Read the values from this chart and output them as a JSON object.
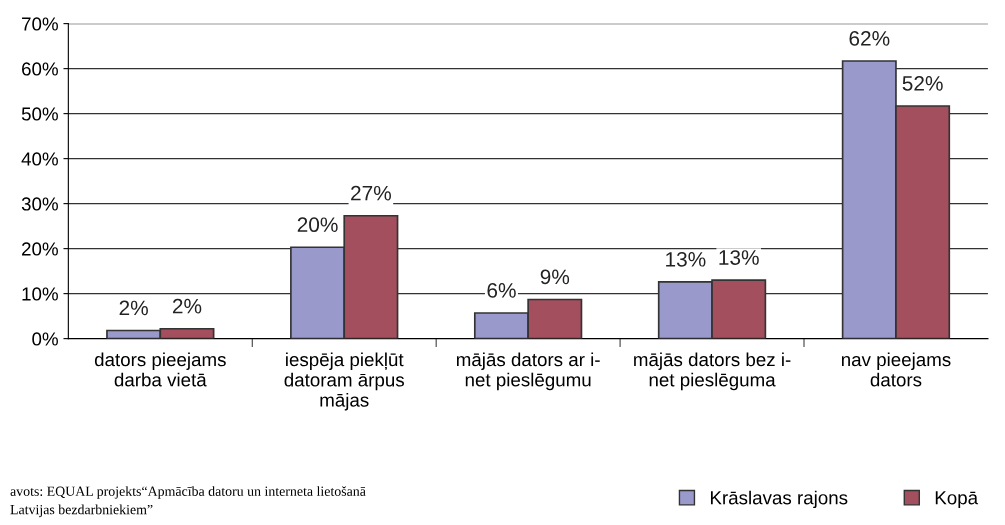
{
  "chart_data": {
    "type": "bar",
    "categories": [
      "dators pieejams\ndarba vietā",
      "iespēja piekļūt\ndatoram ārpus\nmājas",
      "mājās dators ar i-\nnet pieslēgumu",
      "mājās dators bez i-\nnet pieslēguma",
      "nav pieejams\ndators"
    ],
    "series": [
      {
        "name": "Krāslavas rajons",
        "color": "#9999cc",
        "values": [
          1.8,
          20.3,
          5.7,
          12.6,
          61.7
        ],
        "value_labels": [
          "2%",
          "20%",
          "6%",
          "13%",
          "62%"
        ]
      },
      {
        "name": "Kopā",
        "color": "#a34f5e",
        "values": [
          2.2,
          27.3,
          8.7,
          13.0,
          51.7
        ],
        "value_labels": [
          "2%",
          "27%",
          "9%",
          "13%",
          "52%"
        ]
      }
    ],
    "ylim": [
      0,
      70
    ],
    "yticks": [
      {
        "value": 0,
        "label": "0%"
      },
      {
        "value": 10,
        "label": "10%"
      },
      {
        "value": 20,
        "label": "20%"
      },
      {
        "value": 30,
        "label": "30%"
      },
      {
        "value": 40,
        "label": "40%"
      },
      {
        "value": 50,
        "label": "50%"
      },
      {
        "value": 60,
        "label": "60%"
      },
      {
        "value": 70,
        "label": "70%"
      }
    ],
    "grid": "y",
    "legend": "bottom right",
    "annotations": [
      "avots: EQUAL projekts“Apmācība datoru un interneta lietošanā\nLatvijas bezdarbniekiem”"
    ]
  }
}
